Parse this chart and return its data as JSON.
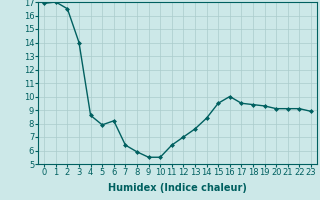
{
  "x": [
    0,
    1,
    2,
    3,
    4,
    5,
    6,
    7,
    8,
    9,
    10,
    11,
    12,
    13,
    14,
    15,
    16,
    17,
    18,
    19,
    20,
    21,
    22,
    23
  ],
  "y": [
    16.9,
    17.0,
    16.5,
    14.0,
    8.6,
    7.9,
    8.2,
    6.4,
    5.9,
    5.5,
    5.5,
    6.4,
    7.0,
    7.6,
    8.4,
    9.5,
    10.0,
    9.5,
    9.4,
    9.3,
    9.1,
    9.1,
    9.1,
    8.9
  ],
  "line_color": "#006060",
  "marker": "D",
  "marker_size": 2,
  "xlabel": "Humidex (Indice chaleur)",
  "xlabel_fontsize": 7,
  "ylim": [
    5,
    17
  ],
  "xlim": [
    -0.5,
    23.5
  ],
  "yticks": [
    5,
    6,
    7,
    8,
    9,
    10,
    11,
    12,
    13,
    14,
    15,
    16,
    17
  ],
  "xticks": [
    0,
    1,
    2,
    3,
    4,
    5,
    6,
    7,
    8,
    9,
    10,
    11,
    12,
    13,
    14,
    15,
    16,
    17,
    18,
    19,
    20,
    21,
    22,
    23
  ],
  "bg_color": "#cce8e8",
  "grid_color": "#aacccc",
  "tick_fontsize": 6,
  "linewidth": 1.0
}
